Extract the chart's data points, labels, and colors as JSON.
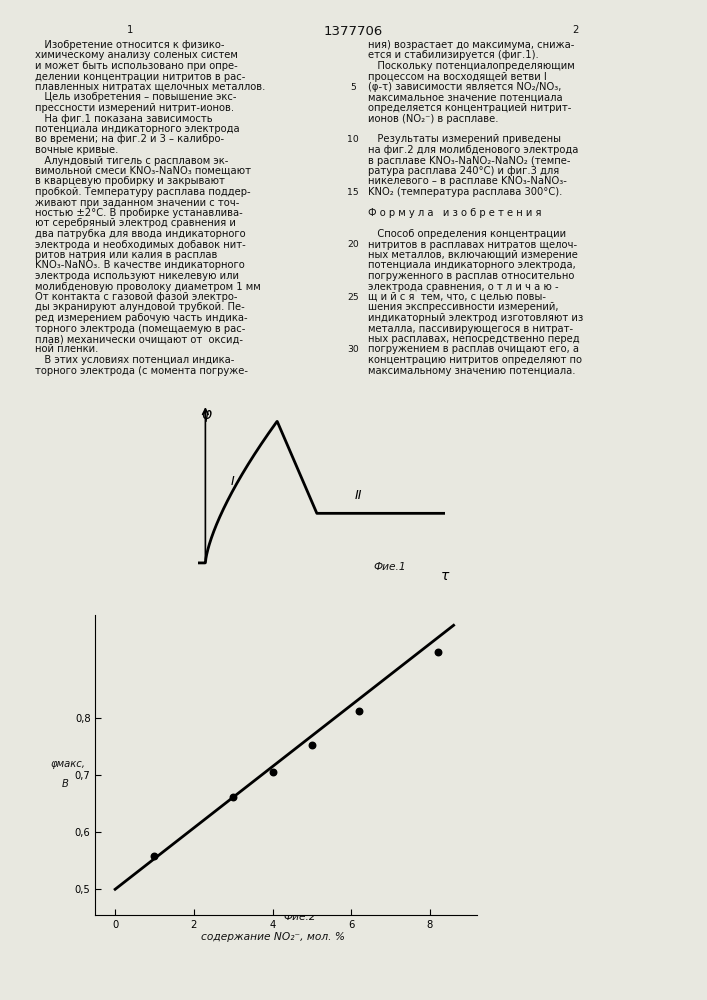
{
  "title": "1377706",
  "background_color": "#e8e8e0",
  "text_color": "#111111",
  "font_size_body": 7.2,
  "font_size_title": 9.5,
  "col1_lines": [
    "   Изобретение относится к физико-",
    "химическому анализу соленых систем",
    "и может быть использовано при опре-",
    "делении концентрации нитритов в рас-",
    "плавленных нитратах щелочных металлов.",
    "   Цель изобретения – повышение экс-",
    "прессности измерений нитрит-ионов.",
    "   На фиг.1 показана зависимость",
    "потенциала индикаторного электрода",
    "во времени; на фиг.2 и 3 – калибро-",
    "вочные кривые.",
    "   Алундовый тигель с расплавом эк-",
    "вимольной смеси KNO₃-NaNO₃ помещают",
    "в кварцевую пробирку и закрывают",
    "пробкой. Температуру расплава поддер-",
    "живают при заданном значении с точ-",
    "ностью ±2°С. В пробирке устанавлива-",
    "ют серебряный электрод сравнения и",
    "два патрубка для ввода индикаторного",
    "электрода и необходимых добавок нит-",
    "ритов натрия или калия в расплав",
    "KNO₃-NaNO₃. В качестве индикаторного",
    "электрода используют никелевую или",
    "молибденовую проволоку диаметром 1 мм",
    "От контакта с газовой фазой электро-",
    "ды экранируют алундовой трубкой. Пе-",
    "ред измерением рабочую часть индика-",
    "торного электрода (помещаемую в рас-",
    "плав) механически очищают от  оксид-",
    "ной пленки.",
    "   В этих условиях потенциал индика-",
    "торного электрода (с момента погруже-"
  ],
  "col2_lines": [
    "ния) возрастает до максимума, снижа-",
    "ется и стабилизируется (фиг.1).",
    "   Поскольку потенциалопределяющим",
    "процессом на восходящей ветви I",
    "(φ-τ) зависимости является NO₂/NO₃,",
    "максимальное значение потенциала",
    "определяется концентрацией нитрит-",
    "ионов (NO₂⁻) в расплаве.",
    "",
    "   Результаты измерений приведены",
    "на фиг.2 для молибденового электрода",
    "в расплаве KNO₃-NaNO₂-NaNO₂ (темпе-",
    "ратура расплава 240°С) и фиг.3 для",
    "никелевого – в расплаве KNO₃-NaNO₃-",
    "KNO₂ (температура расплава 300°С).",
    "",
    "Ф о р м у л а   и з о б р е т е н и я",
    "",
    "   Способ определения концентрации",
    "нитритов в расплавах нитратов щелоч-",
    "ных металлов, включающий измерение",
    "потенциала индикаторного электрода,",
    "погруженного в расплав относительно",
    "электрода сравнения, о т л и ч а ю -",
    "щ и й с я  тем, что, с целью повы-",
    "шения экспрессивности измерений,",
    "индикаторный электрод изготовляют из",
    "металла, пассивирующегося в нитрат-",
    "ных расплавах, непосредственно перед",
    "погружением в расплав очищают его, а",
    "концентрацию нитритов определяют по",
    "максимальному значению потенциала."
  ],
  "line_numbers": [
    5,
    10,
    15,
    20,
    25,
    30
  ],
  "fig1_label": "Фие.1",
  "fig2_label": "Фие.2",
  "phi_label": "φ",
  "tau_label": "τ",
  "scatter_x": [
    1.0,
    3.0,
    4.0,
    5.0,
    6.2,
    8.2
  ],
  "scatter_y": [
    0.558,
    0.662,
    0.705,
    0.752,
    0.812,
    0.915
  ],
  "line_x_start": 0.0,
  "line_x_end": 8.6,
  "line_y_start": 0.5,
  "line_y_end": 0.962,
  "y_ticks": [
    0.5,
    0.6,
    0.7,
    0.8
  ],
  "y_tick_labels": [
    "0,5",
    "0,6",
    "0,7",
    "0,8"
  ],
  "x_ticks": [
    0,
    2,
    4,
    6,
    8
  ],
  "x_tick_labels": [
    "0",
    "2",
    "4",
    "6",
    "8"
  ],
  "xlim": [
    -0.5,
    9.2
  ],
  "ylim": [
    0.455,
    0.98
  ]
}
